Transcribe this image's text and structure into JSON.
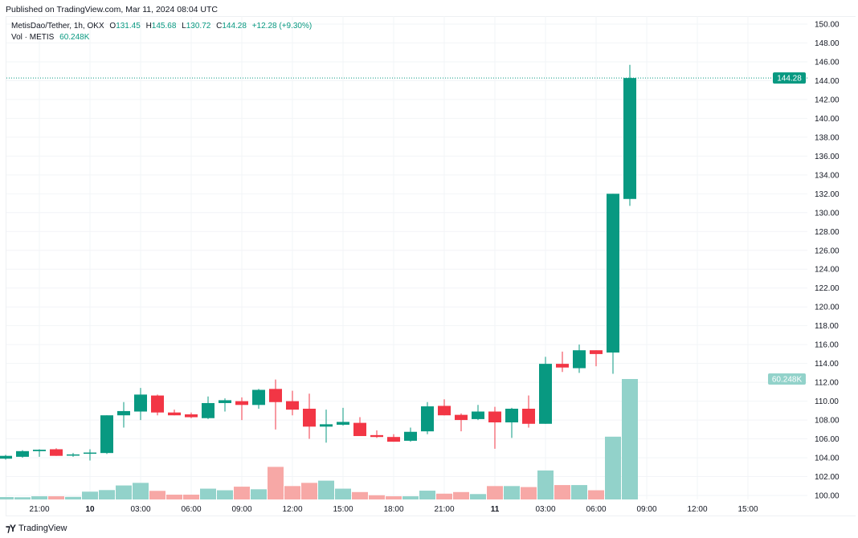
{
  "published": "Published on TradingView.com, Mar 11, 2024 08:04 UTC",
  "legend": {
    "symbol": "MetisDao/Tether, 1h, OKX",
    "o_label": "O",
    "o": "131.45",
    "h_label": "H",
    "h": "145.68",
    "l_label": "L",
    "l": "130.72",
    "c_label": "C",
    "c": "144.28",
    "change": "+12.28 (+9.30%)",
    "vol_label": "Vol · METIS",
    "vol": "60.248K"
  },
  "footer": {
    "logo": "TradingView"
  },
  "colors": {
    "up": "#089981",
    "down": "#f23645",
    "vol_up": "#92d2ca",
    "vol_down": "#f7a8a6",
    "grid": "#f2f4f7"
  },
  "chart_data": {
    "type": "candlestick",
    "title": "MetisDao/Tether, 1h, OKX",
    "ylim": [
      100,
      150
    ],
    "grid": true,
    "y_ticks": [
      "100.00",
      "102.00",
      "104.00",
      "106.00",
      "108.00",
      "110.00",
      "112.00",
      "114.00",
      "116.00",
      "118.00",
      "120.00",
      "122.00",
      "124.00",
      "126.00",
      "128.00",
      "130.00",
      "132.00",
      "134.00",
      "136.00",
      "138.00",
      "140.00",
      "142.00",
      "144.00",
      "146.00",
      "148.00",
      "150.00"
    ],
    "x_ticks": [
      {
        "label": "21:00",
        "index": 2,
        "bold": false
      },
      {
        "label": "10",
        "index": 5,
        "bold": true
      },
      {
        "label": "03:00",
        "index": 8,
        "bold": false
      },
      {
        "label": "06:00",
        "index": 11,
        "bold": false
      },
      {
        "label": "09:00",
        "index": 14,
        "bold": false
      },
      {
        "label": "12:00",
        "index": 17,
        "bold": false
      },
      {
        "label": "15:00",
        "index": 20,
        "bold": false
      },
      {
        "label": "18:00",
        "index": 23,
        "bold": false
      },
      {
        "label": "21:00",
        "index": 26,
        "bold": false
      },
      {
        "label": "11",
        "index": 29,
        "bold": true
      },
      {
        "label": "03:00",
        "index": 32,
        "bold": false
      },
      {
        "label": "06:00",
        "index": 35,
        "bold": false
      },
      {
        "label": "09:00",
        "index": 38,
        "bold": false
      },
      {
        "label": "12:00",
        "index": 41,
        "bold": false
      },
      {
        "label": "15:00",
        "index": 44,
        "bold": false
      }
    ],
    "last_price_label": "144.28",
    "last_volume_label": "60.248K",
    "volume_unit": "K",
    "candles": [
      {
        "t": "Mar 9 19:00",
        "o": 103.9,
        "h": 104.3,
        "l": 103.8,
        "c": 104.2,
        "v": 1.2
      },
      {
        "t": "Mar 9 20:00",
        "o": 104.1,
        "h": 104.8,
        "l": 104.0,
        "c": 104.7,
        "v": 1.1
      },
      {
        "t": "Mar 9 21:00",
        "o": 104.7,
        "h": 104.9,
        "l": 104.1,
        "c": 104.85,
        "v": 1.6
      },
      {
        "t": "Mar 9 22:00",
        "o": 104.9,
        "h": 105.0,
        "l": 104.2,
        "c": 104.2,
        "v": 1.6
      },
      {
        "t": "Mar 9 23:00",
        "o": 104.3,
        "h": 104.5,
        "l": 104.1,
        "c": 104.35,
        "v": 1.3
      },
      {
        "t": "Mar 10 00:00",
        "o": 104.45,
        "h": 104.9,
        "l": 103.7,
        "c": 104.55,
        "v": 3.9
      },
      {
        "t": "Mar 10 01:00",
        "o": 104.5,
        "h": 108.5,
        "l": 104.4,
        "c": 108.5,
        "v": 4.7
      },
      {
        "t": "Mar 10 02:00",
        "o": 108.5,
        "h": 109.9,
        "l": 107.2,
        "c": 108.95,
        "v": 7.0
      },
      {
        "t": "Mar 10 03:00",
        "o": 108.9,
        "h": 111.4,
        "l": 108.0,
        "c": 110.7,
        "v": 8.3
      },
      {
        "t": "Mar 10 04:00",
        "o": 110.6,
        "h": 110.7,
        "l": 108.5,
        "c": 108.8,
        "v": 4.3
      },
      {
        "t": "Mar 10 05:00",
        "o": 108.8,
        "h": 109.1,
        "l": 108.5,
        "c": 108.5,
        "v": 2.4
      },
      {
        "t": "Mar 10 06:00",
        "o": 108.6,
        "h": 108.8,
        "l": 108.2,
        "c": 108.3,
        "v": 2.4
      },
      {
        "t": "Mar 10 07:00",
        "o": 108.2,
        "h": 110.5,
        "l": 108.1,
        "c": 109.8,
        "v": 5.4
      },
      {
        "t": "Mar 10 08:00",
        "o": 109.8,
        "h": 110.3,
        "l": 108.9,
        "c": 110.1,
        "v": 4.6
      },
      {
        "t": "Mar 10 09:00",
        "o": 110.0,
        "h": 110.4,
        "l": 108.0,
        "c": 109.6,
        "v": 6.4
      },
      {
        "t": "Mar 10 10:00",
        "o": 109.6,
        "h": 111.3,
        "l": 109.2,
        "c": 111.2,
        "v": 5.1
      },
      {
        "t": "Mar 10 11:00",
        "o": 111.3,
        "h": 112.3,
        "l": 107.0,
        "c": 109.9,
        "v": 16.3
      },
      {
        "t": "Mar 10 12:00",
        "o": 110.0,
        "h": 111.1,
        "l": 108.5,
        "c": 109.1,
        "v": 6.7
      },
      {
        "t": "Mar 10 13:00",
        "o": 109.2,
        "h": 110.8,
        "l": 106.0,
        "c": 107.3,
        "v": 8.3
      },
      {
        "t": "Mar 10 14:00",
        "o": 107.3,
        "h": 109.1,
        "l": 105.6,
        "c": 107.55,
        "v": 9.4
      },
      {
        "t": "Mar 10 15:00",
        "o": 107.5,
        "h": 109.3,
        "l": 107.4,
        "c": 107.8,
        "v": 5.4
      },
      {
        "t": "Mar 10 16:00",
        "o": 107.7,
        "h": 108.3,
        "l": 106.3,
        "c": 106.3,
        "v": 3.7
      },
      {
        "t": "Mar 10 17:00",
        "o": 106.4,
        "h": 106.9,
        "l": 106.1,
        "c": 106.2,
        "v": 2.1
      },
      {
        "t": "Mar 10 18:00",
        "o": 106.2,
        "h": 106.5,
        "l": 105.7,
        "c": 105.7,
        "v": 1.6
      },
      {
        "t": "Mar 10 19:00",
        "o": 105.8,
        "h": 107.2,
        "l": 105.7,
        "c": 106.75,
        "v": 1.6
      },
      {
        "t": "Mar 10 20:00",
        "o": 106.8,
        "h": 109.9,
        "l": 106.5,
        "c": 109.45,
        "v": 4.4
      },
      {
        "t": "Mar 10 21:00",
        "o": 109.5,
        "h": 110.2,
        "l": 108.5,
        "c": 108.5,
        "v": 2.9
      },
      {
        "t": "Mar 10 22:00",
        "o": 108.55,
        "h": 108.7,
        "l": 106.8,
        "c": 108.0,
        "v": 3.7
      },
      {
        "t": "Mar 10 23:00",
        "o": 108.1,
        "h": 109.6,
        "l": 108.0,
        "c": 108.9,
        "v": 2.7
      },
      {
        "t": "Mar 11 00:00",
        "o": 108.9,
        "h": 109.4,
        "l": 104.95,
        "c": 107.75,
        "v": 6.7
      },
      {
        "t": "Mar 11 01:00",
        "o": 107.75,
        "h": 109.3,
        "l": 106.1,
        "c": 109.2,
        "v": 6.7
      },
      {
        "t": "Mar 11 02:00",
        "o": 109.2,
        "h": 110.6,
        "l": 107.2,
        "c": 107.6,
        "v": 6.2
      },
      {
        "t": "Mar 11 03:00",
        "o": 107.6,
        "h": 114.7,
        "l": 107.6,
        "c": 113.96,
        "v": 14.5
      },
      {
        "t": "Mar 11 04:00",
        "o": 113.96,
        "h": 115.26,
        "l": 113.1,
        "c": 113.57,
        "v": 7.2
      },
      {
        "t": "Mar 11 05:00",
        "o": 113.5,
        "h": 116.0,
        "l": 113.0,
        "c": 115.4,
        "v": 7.2
      },
      {
        "t": "Mar 11 06:00",
        "o": 115.4,
        "h": 115.4,
        "l": 113.7,
        "c": 115.0,
        "v": 4.6
      },
      {
        "t": "Mar 11 07:00",
        "o": 115.16,
        "h": 132.0,
        "l": 112.9,
        "c": 132.0,
        "v": 31.4
      },
      {
        "t": "Mar 11 08:00",
        "o": 131.45,
        "h": 145.68,
        "l": 130.72,
        "c": 144.28,
        "v": 60.248
      }
    ]
  }
}
